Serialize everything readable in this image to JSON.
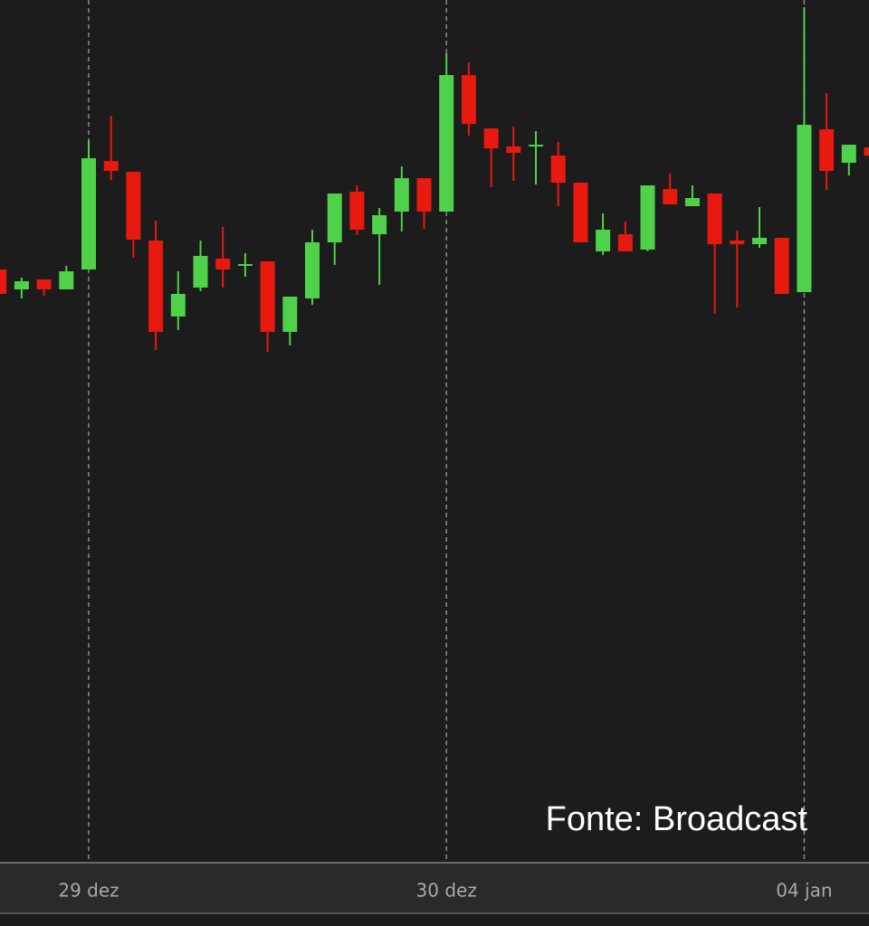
{
  "chart_data": {
    "type": "candlestick",
    "annotation": "Fonte: Broadcast",
    "categories": [
      null,
      null,
      null,
      null,
      "29 dez",
      null,
      null,
      null,
      null,
      null,
      null,
      null,
      null,
      null,
      null,
      null,
      null,
      null,
      null,
      null,
      "30 dez",
      null,
      null,
      null,
      null,
      null,
      null,
      null,
      null,
      null,
      null,
      null,
      null,
      null,
      null,
      null,
      "04 jan",
      null,
      null,
      null
    ],
    "open": [
      652,
      630,
      641,
      630,
      652,
      772,
      760,
      684,
      600,
      632,
      664,
      656,
      661,
      583,
      620,
      682,
      738,
      691,
      716,
      753,
      716,
      867,
      808,
      788,
      788,
      778,
      748,
      672,
      691,
      674,
      741,
      722,
      736,
      684,
      680,
      687,
      627,
      807,
      770,
      787
    ],
    "high": [
      652,
      643,
      641,
      656,
      795,
      822,
      760,
      706,
      650,
      684,
      699,
      670,
      661,
      622,
      696,
      736,
      745,
      720,
      766,
      753,
      891,
      881,
      808,
      810,
      805,
      793,
      748,
      714,
      705,
      745,
      758,
      745,
      736,
      695,
      721,
      687,
      942,
      847,
      790,
      787
    ],
    "low": [
      625,
      620,
      623,
      630,
      652,
      751,
      665,
      563,
      585,
      628,
      632,
      644,
      561,
      568,
      613,
      657,
      690,
      635,
      694,
      697,
      716,
      800,
      743,
      750,
      746,
      722,
      682,
      668,
      672,
      672,
      724,
      722,
      603,
      610,
      676,
      625,
      627,
      740,
      756,
      778
    ],
    "close": [
      625,
      639,
      630,
      650,
      775,
      761,
      685,
      583,
      625,
      667,
      652,
      658,
      583,
      622,
      682,
      736,
      696,
      712,
      753,
      716,
      867,
      813,
      786,
      781,
      790,
      748,
      682,
      696,
      672,
      745,
      724,
      731,
      680,
      680,
      687,
      625,
      812,
      761,
      790,
      778
    ],
    "up_color": "#4fd14a",
    "down_color": "#e8190f",
    "ylim": [
      0,
      950
    ]
  }
}
